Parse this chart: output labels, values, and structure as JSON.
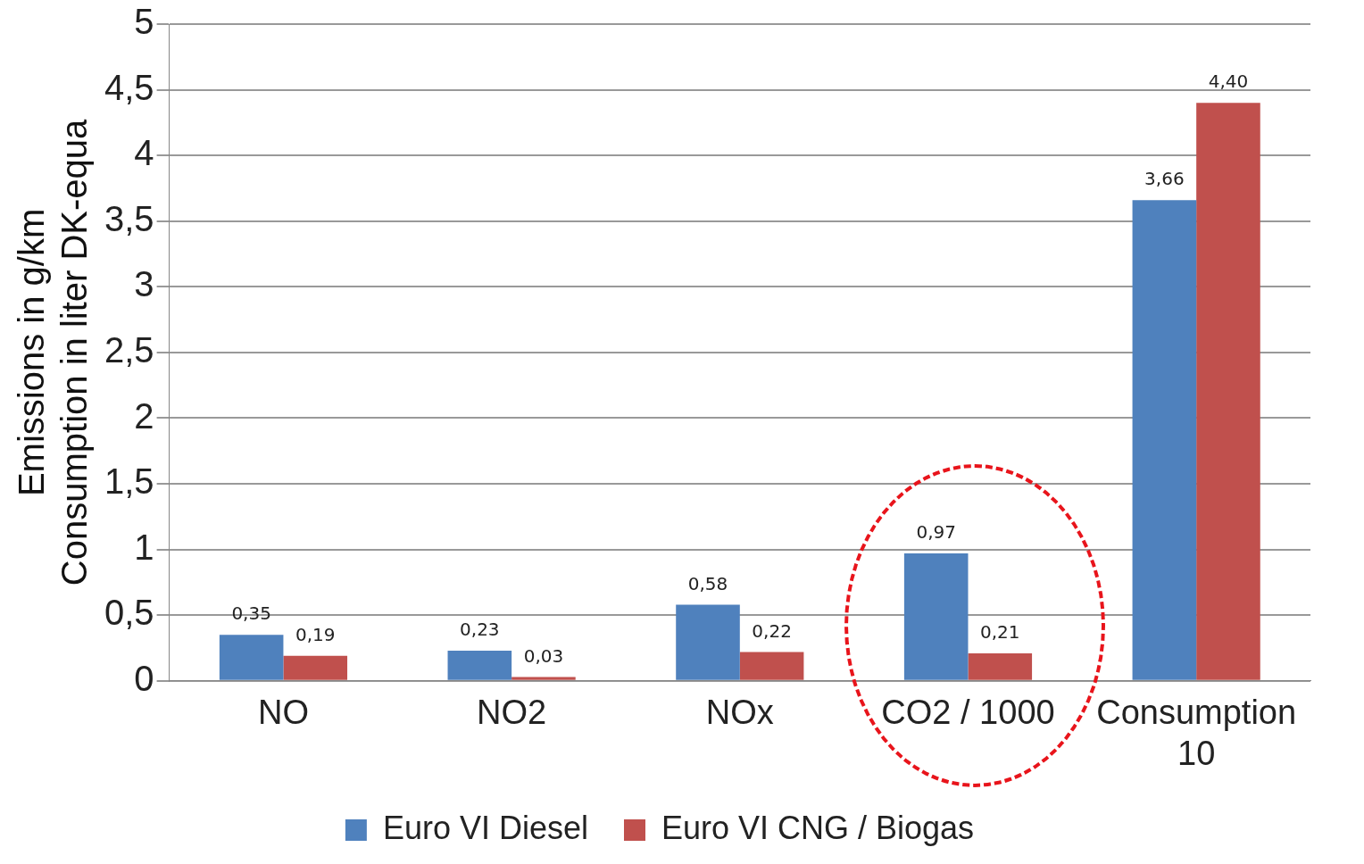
{
  "chart_data": {
    "type": "bar",
    "ylabel": "Emissions in g/km\nConsumption in liter DK-equa",
    "categories": [
      "NO",
      "NO2",
      "NOx",
      "CO2 / 1000",
      "Consumption\n10"
    ],
    "series": [
      {
        "name": "Euro VI Diesel",
        "color": "#4f81bd",
        "values": [
          0.35,
          0.23,
          0.58,
          0.97,
          3.66
        ],
        "value_labels": [
          "0,35",
          "0,23",
          "0,58",
          "0,97",
          "3,66"
        ]
      },
      {
        "name": "Euro VI CNG / Biogas",
        "color": "#c0504d",
        "values": [
          0.19,
          0.03,
          0.22,
          0.21,
          4.4
        ],
        "value_labels": [
          "0,19",
          "0,03",
          "0,22",
          "0,21",
          "4,40"
        ]
      }
    ],
    "ylim": [
      0,
      5
    ],
    "yticks": [
      0,
      {
        "value": 0.5,
        "label": "0,5"
      },
      1,
      {
        "value": 1.5,
        "label": "1,5"
      },
      2,
      {
        "value": 2.5,
        "label": "2,5"
      },
      3,
      {
        "value": 3.5,
        "label": "3,5"
      },
      4,
      {
        "value": 4.5,
        "label": "4,5"
      },
      5
    ],
    "grid": "y",
    "legend": "bottom"
  }
}
